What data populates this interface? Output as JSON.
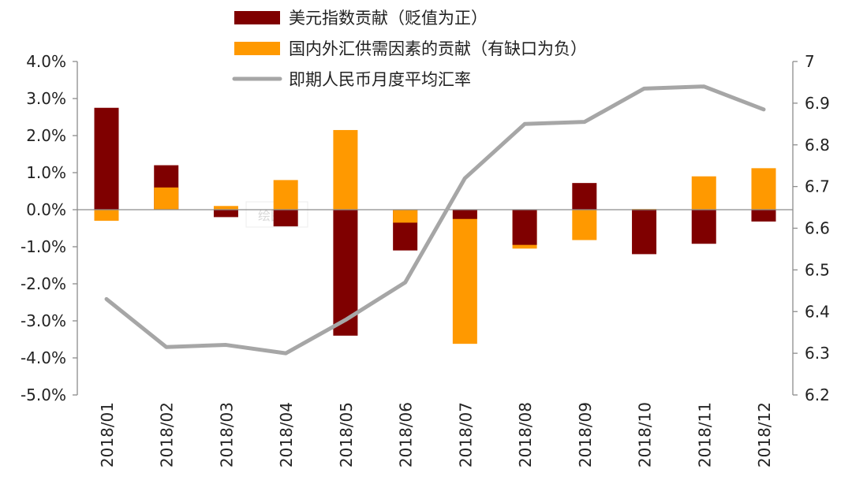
{
  "chart_data": {
    "type": "bar",
    "categories": [
      "2018/01",
      "2018/02",
      "2018/03",
      "2018/04",
      "2018/05",
      "2018/06",
      "2018/07",
      "2018/08",
      "2018/09",
      "2018/10",
      "2018/11",
      "2018/12"
    ],
    "series": [
      {
        "name": "美元指数贡献（贬值为正）",
        "type": "bar",
        "axis": "left",
        "color": "#7f0000",
        "values": [
          2.75,
          1.2,
          -0.2,
          -0.45,
          -3.4,
          -1.1,
          -0.25,
          -0.95,
          0.72,
          -1.2,
          -0.92,
          -0.32
        ]
      },
      {
        "name": "国内外汇供需因素的贡献（有缺口为负）",
        "type": "bar",
        "axis": "left",
        "color": "#ff9900",
        "values": [
          -0.3,
          0.6,
          0.1,
          0.8,
          2.15,
          -0.35,
          -3.62,
          -1.05,
          -0.82,
          0.02,
          0.9,
          1.12
        ]
      },
      {
        "name": "即期人民币月度平均汇率",
        "type": "line",
        "axis": "right",
        "color": "#a6a6a6",
        "values": [
          6.43,
          6.315,
          6.32,
          6.3,
          6.38,
          6.47,
          6.72,
          6.85,
          6.855,
          6.935,
          6.94,
          6.885
        ]
      }
    ],
    "stacking": "overlaid-from-zero",
    "y_left": {
      "lim": [
        -5.0,
        4.0
      ],
      "ticks": [
        4.0,
        3.0,
        2.0,
        1.0,
        0.0,
        -1.0,
        -2.0,
        -3.0,
        -4.0,
        -5.0
      ],
      "tick_labels": [
        "4.0%",
        "3.0%",
        "2.0%",
        "1.0%",
        "0.0%",
        "-1.0%",
        "-2.0%",
        "-3.0%",
        "-4.0%",
        "-5.0%"
      ]
    },
    "y_right": {
      "lim": [
        6.2,
        7.0
      ],
      "ticks": [
        7.0,
        6.9,
        6.8,
        6.7,
        6.6,
        6.5,
        6.4,
        6.3,
        6.2
      ],
      "tick_labels": [
        "7",
        "6.9",
        "6.8",
        "6.7",
        "6.6",
        "6.5",
        "6.4",
        "6.3",
        "6.2"
      ]
    },
    "legend_position": "top-center",
    "grid": false,
    "watermark": "绘图区"
  }
}
